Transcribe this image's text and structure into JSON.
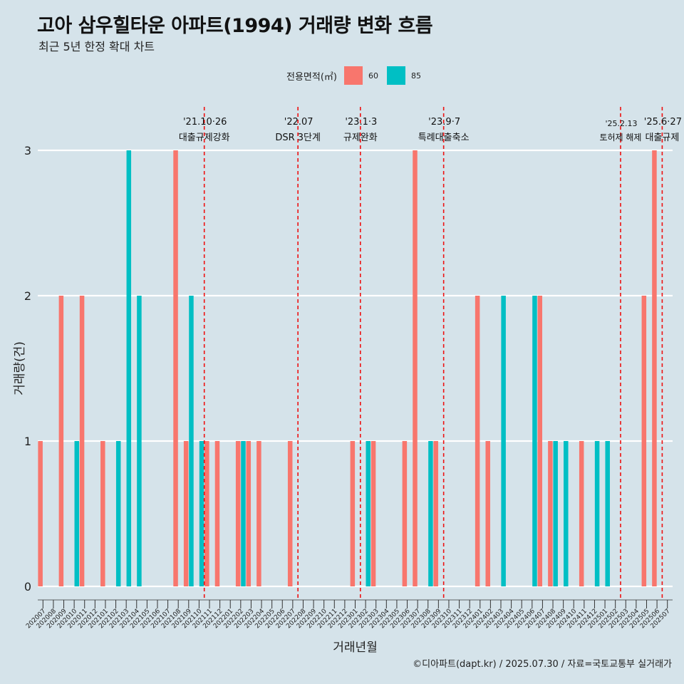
{
  "title": "고아 삼우힐타운 아파트(1994) 거래량 변화 흐름",
  "subtitle": "최근 5년 한정 확대 차트",
  "caption": "©디아파트(dapt.kr) / 2025.07.30 / 자료=국토교통부 실거래가",
  "colors": {
    "background": "#d5e3ea",
    "area60": "#f8766d",
    "area85": "#00bfc4",
    "grid": "#ffffff",
    "event_line": "#ee1111"
  },
  "chart_data": {
    "type": "bar",
    "xlabel": "거래년월",
    "ylabel": "거래량(건)",
    "ylim": [
      0,
      3
    ],
    "yticks": [
      0,
      1,
      2,
      3
    ],
    "legend": {
      "title": "전용면적(㎡)",
      "position": "top"
    },
    "categories": [
      "202007",
      "202008",
      "202009",
      "202010",
      "202011",
      "202012",
      "202101",
      "202102",
      "202103",
      "202104",
      "202105",
      "202106",
      "202107",
      "202108",
      "202109",
      "202110",
      "202111",
      "202112",
      "202201",
      "202202",
      "202203",
      "202204",
      "202205",
      "202206",
      "202207",
      "202208",
      "202209",
      "202210",
      "202211",
      "202212",
      "202301",
      "202302",
      "202303",
      "202304",
      "202305",
      "202306",
      "202307",
      "202308",
      "202309",
      "202310",
      "202311",
      "202312",
      "202401",
      "202402",
      "202403",
      "202404",
      "202405",
      "202406",
      "202407",
      "202408",
      "202409",
      "202410",
      "202411",
      "202412",
      "202501",
      "202502",
      "202503",
      "202504",
      "202505",
      "202506",
      "202507"
    ],
    "series": [
      {
        "name": "60",
        "color": "#f8766d",
        "values": [
          1,
          0,
          2,
          0,
          2,
          0,
          1,
          0,
          0,
          0,
          0,
          0,
          0,
          3,
          1,
          0,
          1,
          1,
          0,
          1,
          1,
          1,
          0,
          0,
          1,
          0,
          0,
          0,
          0,
          0,
          1,
          0,
          1,
          0,
          0,
          1,
          3,
          0,
          1,
          0,
          0,
          0,
          2,
          1,
          0,
          0,
          0,
          0,
          2,
          1,
          0,
          0,
          1,
          0,
          0,
          0,
          0,
          0,
          2,
          3,
          0
        ]
      },
      {
        "name": "85",
        "color": "#00bfc4",
        "values": [
          0,
          0,
          0,
          1,
          0,
          0,
          0,
          1,
          3,
          2,
          0,
          0,
          0,
          0,
          2,
          1,
          0,
          0,
          0,
          1,
          0,
          0,
          0,
          0,
          0,
          0,
          0,
          0,
          0,
          0,
          0,
          1,
          0,
          0,
          0,
          0,
          0,
          1,
          0,
          0,
          0,
          0,
          0,
          0,
          2,
          0,
          0,
          2,
          0,
          1,
          1,
          0,
          0,
          1,
          1,
          0,
          0,
          0,
          0,
          0,
          0
        ]
      }
    ],
    "events": [
      {
        "date_label": "'21.10·26",
        "text": "대출규제강화",
        "after": "202110"
      },
      {
        "date_label": "'22.07",
        "text": "DSR 3단계",
        "after": "202207"
      },
      {
        "date_label": "'23.1·3",
        "text": "규제완화",
        "after": "202301"
      },
      {
        "date_label": "'23.9·7",
        "text": "특례대출축소",
        "after": "202309"
      },
      {
        "date_label": "'25.2.13",
        "text": "토허제 해제",
        "after": "202502"
      },
      {
        "date_label": "'25.6·27",
        "text": "대출규제",
        "after": "202506"
      }
    ]
  }
}
